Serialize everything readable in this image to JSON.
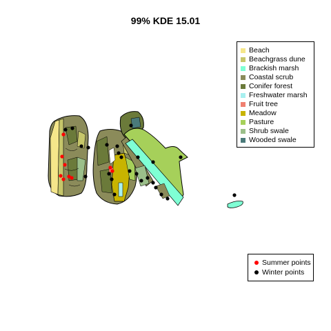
{
  "title": "99% KDE 15.01",
  "habitat_legend": [
    {
      "label": "Beach",
      "color": "#f5e68a"
    },
    {
      "label": "Beachgrass dune",
      "color": "#c6c66a"
    },
    {
      "label": "Brackish marsh",
      "color": "#7fffd4"
    },
    {
      "label": "Coastal scrub",
      "color": "#8b8b5a"
    },
    {
      "label": "Conifer forest",
      "color": "#6b7a3a"
    },
    {
      "label": "Freshwater marsh",
      "color": "#a8f0f0"
    },
    {
      "label": "Fruit tree",
      "color": "#f08070"
    },
    {
      "label": "Meadow",
      "color": "#c8b400"
    },
    {
      "label": "Pasture",
      "color": "#a6d05a"
    },
    {
      "label": "Shrub swale",
      "color": "#9bbf8a"
    },
    {
      "label": "Wooded swale",
      "color": "#4a7a7a"
    }
  ],
  "points_legend": [
    {
      "label": "Summer points",
      "color": "#ff0000"
    },
    {
      "label": "Winter points",
      "color": "#000000"
    }
  ]
}
